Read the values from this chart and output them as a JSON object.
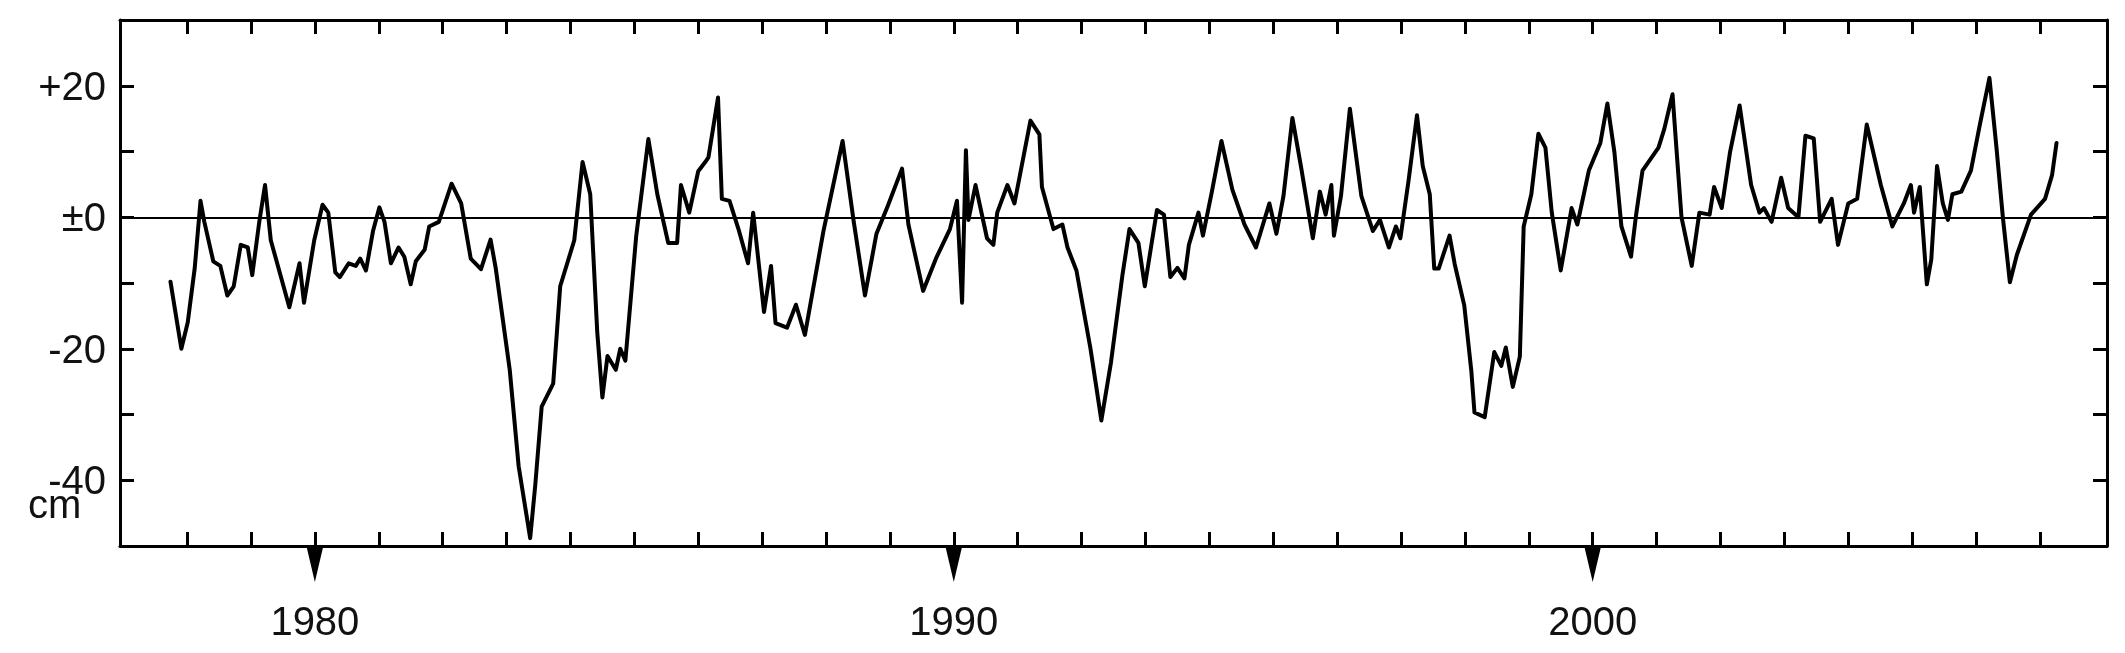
{
  "chart_data": {
    "type": "line",
    "ylabel": "cm",
    "xlim": [
      1976.95,
      2008.05
    ],
    "ylim": [
      -50,
      30
    ],
    "xticks": [
      {
        "value": 1978,
        "label": null
      },
      {
        "value": 1979,
        "label": null
      },
      1980,
      {
        "value": 1981,
        "label": null
      },
      {
        "value": 1982,
        "label": null
      },
      {
        "value": 1983,
        "label": null
      },
      {
        "value": 1984,
        "label": null
      },
      {
        "value": 1985,
        "label": null
      },
      {
        "value": 1986,
        "label": null
      },
      {
        "value": 1987,
        "label": null
      },
      {
        "value": 1988,
        "label": null
      },
      {
        "value": 1989,
        "label": null
      },
      1990,
      {
        "value": 1991,
        "label": null
      },
      {
        "value": 1992,
        "label": null
      },
      {
        "value": 1993,
        "label": null
      },
      {
        "value": 1994,
        "label": null
      },
      {
        "value": 1995,
        "label": null
      },
      {
        "value": 1996,
        "label": null
      },
      {
        "value": 1997,
        "label": null
      },
      {
        "value": 1998,
        "label": null
      },
      {
        "value": 1999,
        "label": null
      },
      2000,
      {
        "value": 2001,
        "label": null
      },
      {
        "value": 2002,
        "label": null
      },
      {
        "value": 2003,
        "label": null
      },
      {
        "value": 2004,
        "label": null
      },
      {
        "value": 2005,
        "label": null
      },
      {
        "value": 2006,
        "label": null
      },
      {
        "value": 2007,
        "label": null
      }
    ],
    "yticks": [
      {
        "value": 20,
        "label": "+20"
      },
      {
        "value": 10,
        "label": null
      },
      {
        "value": 0,
        "label": "±0"
      },
      {
        "value": -10,
        "label": null
      },
      {
        "value": -20,
        "label": "-20"
      },
      {
        "value": -30,
        "label": null
      },
      {
        "value": -40,
        "label": "-40"
      }
    ],
    "grid": false,
    "marker": "none",
    "line_style": "solid",
    "ref_lines": [
      {
        "axis": "y",
        "value": 0,
        "color": "#000000"
      }
    ],
    "series": [
      {
        "color": "#000000",
        "x": [
          1977.74,
          1977.91,
          1978.01,
          1978.12,
          1978.21,
          1978.27,
          1978.41,
          1978.52,
          1978.63,
          1978.73,
          1978.84,
          1978.95,
          1979.02,
          1979.13,
          1979.22,
          1979.31,
          1979.45,
          1979.6,
          1979.76,
          1979.83,
          1979.99,
          1980.12,
          1980.21,
          1980.32,
          1980.39,
          1980.53,
          1980.64,
          1980.71,
          1980.8,
          1980.91,
          1981.01,
          1981.09,
          1981.19,
          1981.31,
          1981.4,
          1981.5,
          1981.58,
          1981.72,
          1981.79,
          1981.94,
          1982.14,
          1982.29,
          1982.44,
          1982.6,
          1982.75,
          1982.83,
          1983.05,
          1983.19,
          1983.37,
          1983.45,
          1983.55,
          1983.73,
          1983.84,
          1984.06,
          1984.19,
          1984.31,
          1984.42,
          1984.5,
          1984.58,
          1984.71,
          1984.78,
          1984.86,
          1985.03,
          1985.22,
          1985.36,
          1985.53,
          1985.67,
          1985.73,
          1985.86,
          1986,
          1986.11,
          1986.16,
          1986.31,
          1986.37,
          1986.49,
          1986.63,
          1986.78,
          1986.86,
          1987.03,
          1987.14,
          1987.21,
          1987.39,
          1987.53,
          1987.67,
          1987.96,
          1988.26,
          1988.43,
          1988.61,
          1988.79,
          1988.97,
          1989.19,
          1989.29,
          1989.52,
          1989.72,
          1989.94,
          1990.05,
          1990.13,
          1990.19,
          1990.23,
          1990.34,
          1990.52,
          1990.62,
          1990.68,
          1990.84,
          1990.95,
          1991.2,
          1991.34,
          1991.38,
          1991.56,
          1991.7,
          1991.78,
          1991.92,
          1992.14,
          1992.31,
          1992.46,
          1992.64,
          1992.75,
          1992.89,
          1992.99,
          1993.18,
          1993.29,
          1993.39,
          1993.5,
          1993.61,
          1993.68,
          1993.83,
          1993.9,
          1994.04,
          1994.19,
          1994.36,
          1994.55,
          1994.73,
          1994.94,
          1995.05,
          1995.16,
          1995.3,
          1995.44,
          1995.62,
          1995.73,
          1995.82,
          1995.91,
          1995.95,
          1996.06,
          1996.2,
          1996.38,
          1996.56,
          1996.67,
          1996.81,
          1996.92,
          1996.99,
          1997.12,
          1997.25,
          1997.34,
          1997.45,
          1997.52,
          1997.59,
          1997.76,
          1997.84,
          1997.99,
          1998.1,
          1998.15,
          1998.31,
          1998.46,
          1998.57,
          1998.64,
          1998.75,
          1998.86,
          1998.92,
          1999.04,
          1999.15,
          1999.26,
          1999.36,
          1999.5,
          1999.67,
          1999.76,
          1999.94,
          2000.12,
          2000.23,
          2000.34,
          2000.45,
          2000.6,
          2000.68,
          2000.78,
          2001.03,
          2001.12,
          2001.25,
          2001.32,
          2001.39,
          2001.55,
          2001.67,
          2001.83,
          2001.9,
          2002.02,
          2002.15,
          2002.3,
          2002.48,
          2002.61,
          2002.68,
          2002.8,
          2002.95,
          2003.06,
          2003.22,
          2003.33,
          2003.46,
          2003.56,
          2003.74,
          2003.84,
          2004,
          2004.14,
          2004.29,
          2004.51,
          2004.69,
          2004.87,
          2004.98,
          2005.03,
          2005.12,
          2005.23,
          2005.3,
          2005.39,
          2005.48,
          2005.56,
          2005.63,
          2005.77,
          2005.92,
          2006.06,
          2006.21,
          2006.32,
          2006.42,
          2006.53,
          2006.64,
          2006.86,
          2007.08,
          2007.19,
          2007.26
        ],
        "values": [
          -9.8,
          -20,
          -16,
          -7.7,
          2.5,
          -0.7,
          -6.7,
          -7.4,
          -11.9,
          -10.5,
          -4.2,
          -4.6,
          -8.8,
          -0.7,
          4.9,
          -3.5,
          -8.4,
          -13.7,
          -7,
          -13,
          -3.5,
          1.9,
          0.7,
          -8.4,
          -9.1,
          -7,
          -7.4,
          -6.3,
          -8.1,
          -2.1,
          1.5,
          -0.7,
          -7,
          -4.6,
          -6,
          -10.2,
          -6.7,
          -4.9,
          -1.4,
          -0.7,
          5.1,
          2.1,
          -6.3,
          -7.9,
          -3.4,
          -7.7,
          -23.2,
          -37.9,
          -48.8,
          -40.7,
          -28.8,
          -25.3,
          -10.5,
          -3.5,
          8.4,
          3.5,
          -17.5,
          -27.4,
          -21.1,
          -23.2,
          -20,
          -21.8,
          -2.8,
          11.9,
          3.5,
          -3.9,
          -3.9,
          4.9,
          0.7,
          7,
          8.4,
          9.1,
          18.2,
          2.8,
          2.5,
          -1.8,
          -7,
          0.7,
          -14.4,
          -7.4,
          -16.1,
          -16.8,
          -13.3,
          -17.9,
          -2.1,
          11.6,
          -0.4,
          -11.9,
          -2.5,
          1.8,
          7.4,
          -1.1,
          -11.2,
          -6.3,
          -1.8,
          2.5,
          -13,
          10.2,
          -0.4,
          4.9,
          -3.2,
          -4.2,
          0.7,
          4.9,
          2.1,
          14.7,
          12.6,
          4.6,
          -1.8,
          -1.1,
          -4.6,
          -8.1,
          -20,
          -30.9,
          -22.1,
          -8.8,
          -1.8,
          -3.9,
          -10.5,
          1.1,
          0.4,
          -9.1,
          -7.7,
          -9.3,
          -4.2,
          0.7,
          -2.8,
          3.9,
          11.6,
          4.2,
          -1.1,
          -4.6,
          2.1,
          -2.5,
          3.2,
          15.1,
          7.4,
          -3.2,
          3.9,
          0.4,
          4.9,
          -2.8,
          3.2,
          16.5,
          3.2,
          -2.1,
          -0.4,
          -4.6,
          -1.4,
          -3.2,
          5.7,
          15.5,
          7.8,
          3.5,
          -7.8,
          -7.8,
          -2.8,
          -7.1,
          -13.4,
          -23.3,
          -29.7,
          -30.4,
          -20.5,
          -22.6,
          -19.8,
          -25.8,
          -21.2,
          -1.4,
          3.5,
          12.7,
          10.6,
          0.7,
          -8.1,
          1.4,
          -1.1,
          7.1,
          11.3,
          17.3,
          9.9,
          -1.4,
          -6,
          0.4,
          7.1,
          10.6,
          13.4,
          18.7,
          9.2,
          0,
          -7.4,
          0.7,
          0.4,
          4.6,
          1.4,
          9.9,
          17,
          4.9,
          0.7,
          1.4,
          -0.7,
          6,
          1.4,
          0,
          12.4,
          12,
          -0.7,
          2.8,
          -4.2,
          2.1,
          2.8,
          14.1,
          4.9,
          -1.4,
          2.1,
          4.9,
          0.7,
          4.6,
          -10.2,
          -6.4,
          7.8,
          2.1,
          -0.4,
          3.5,
          3.9,
          7.1,
          14.1,
          21.2,
          10.6,
          0,
          -9.9,
          -5.7,
          0.4,
          2.8,
          6.4,
          11.3
        ]
      }
    ]
  }
}
